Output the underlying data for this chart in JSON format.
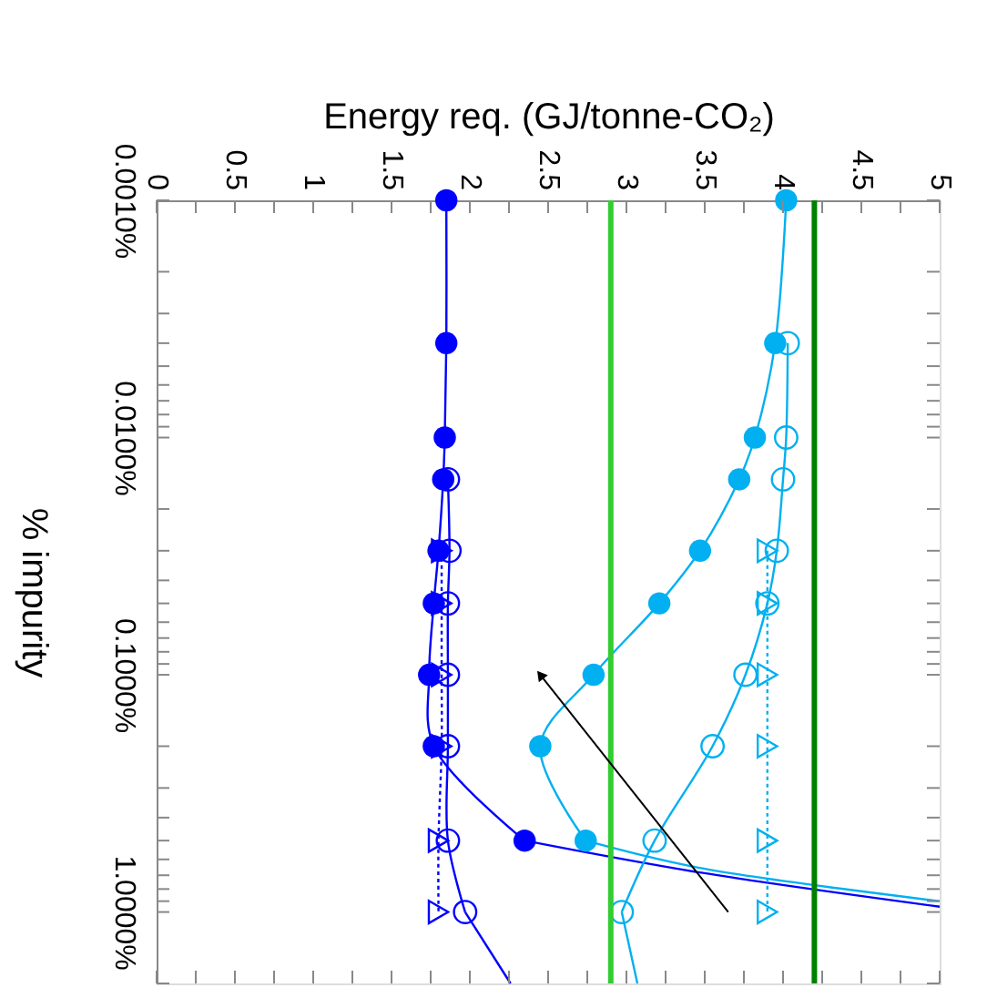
{
  "chart_data": {
    "type": "line",
    "orientation": "horizontal",
    "xlabel": "Energy req. (GJ/tonne-CO₂)",
    "ylabel": "% impurity",
    "log": "y",
    "ylim": [
      2,
      0.001
    ],
    "yticks": [
      {
        "value": 0.001,
        "label": "0.0010%"
      },
      {
        "value": 0.002,
        "label": null
      },
      {
        "value": 0.003,
        "label": null
      },
      {
        "value": 0.004,
        "label": null
      },
      {
        "value": 0.005,
        "label": null
      },
      {
        "value": 0.006,
        "label": null
      },
      {
        "value": 0.007,
        "label": null
      },
      {
        "value": 0.008,
        "label": null
      },
      {
        "value": 0.009,
        "label": null
      },
      {
        "value": 0.01,
        "label": "0.0100%"
      },
      {
        "value": 0.02,
        "label": null
      },
      {
        "value": 0.03,
        "label": null
      },
      {
        "value": 0.04,
        "label": null
      },
      {
        "value": 0.05,
        "label": null
      },
      {
        "value": 0.06,
        "label": null
      },
      {
        "value": 0.07,
        "label": null
      },
      {
        "value": 0.08,
        "label": null
      },
      {
        "value": 0.09,
        "label": null
      },
      {
        "value": 0.1,
        "label": "0.1000%"
      },
      {
        "value": 0.2,
        "label": null
      },
      {
        "value": 0.3,
        "label": null
      },
      {
        "value": 0.4,
        "label": null
      },
      {
        "value": 0.5,
        "label": null
      },
      {
        "value": 0.6,
        "label": null
      },
      {
        "value": 0.7,
        "label": null
      },
      {
        "value": 0.8,
        "label": null
      },
      {
        "value": 0.9,
        "label": null
      },
      {
        "value": 1,
        "label": "1.0000%"
      },
      {
        "value": 2,
        "label": null
      }
    ],
    "xlim": [
      0,
      5
    ],
    "xticks": [
      0,
      {
        "value": 0.25,
        "label": null
      },
      0.5,
      {
        "value": 0.75,
        "label": null
      },
      1,
      {
        "value": 1.25,
        "label": null
      },
      1.5,
      {
        "value": 1.75,
        "label": null
      },
      2,
      {
        "value": 2.25,
        "label": null
      },
      2.5,
      {
        "value": 2.75,
        "label": null
      },
      3,
      {
        "value": 3.25,
        "label": null
      },
      3.5,
      {
        "value": 3.75,
        "label": null
      },
      4,
      {
        "value": 4.25,
        "label": null
      },
      4.5,
      {
        "value": 4.75,
        "label": null
      },
      5
    ],
    "series": [
      {
        "color": "#0000ff",
        "marker": "circle",
        "line_style": "solid",
        "x": [
          0.001,
          0.004,
          0.01,
          0.015,
          0.03,
          0.05,
          0.1,
          0.2,
          0.5
        ],
        "values": [
          1.85,
          1.85,
          1.84,
          1.83,
          1.8,
          1.77,
          1.74,
          1.77,
          2.35
        ]
      },
      {
        "color": "#0000ff",
        "marker": "none",
        "line_style": "solid",
        "x": [
          0.5,
          0.68,
          0.95
        ],
        "values": [
          2.35,
          3.46,
          5
        ]
      },
      {
        "color": "#0000ff",
        "marker": "circle-open",
        "line_style": "solid",
        "x": [
          0.015,
          0.03,
          0.05,
          0.1,
          0.2,
          0.5,
          1
        ],
        "values": [
          1.86,
          1.87,
          1.86,
          1.86,
          1.86,
          1.86,
          1.97
        ]
      },
      {
        "color": "#0000ff",
        "marker": "none",
        "line_style": "solid",
        "x": [
          1,
          2
        ],
        "values": [
          1.97,
          2.26
        ]
      },
      {
        "color": "#0000ff",
        "marker": "triangle-open",
        "line_style": "dotted",
        "x": [
          0.03,
          0.05,
          0.1,
          0.2,
          0.5,
          1
        ],
        "values": [
          1.82,
          1.82,
          1.82,
          1.82,
          1.8,
          1.8
        ]
      },
      {
        "color": "#00b0f0",
        "marker": "circle",
        "line_style": "solid",
        "x": [
          0.001,
          0.004,
          0.01,
          0.015,
          0.03,
          0.05,
          0.1,
          0.2,
          0.5
        ],
        "values": [
          4.02,
          3.95,
          3.82,
          3.72,
          3.47,
          3.21,
          2.79,
          2.45,
          2.74
        ]
      },
      {
        "color": "#00b0f0",
        "marker": "none",
        "line_style": "solid",
        "x": [
          0.5,
          0.65,
          0.9
        ],
        "values": [
          2.74,
          3.46,
          5
        ]
      },
      {
        "color": "#00b0f0",
        "marker": "circle-open",
        "line_style": "solid",
        "x": [
          0.004,
          0.01,
          0.015,
          0.03,
          0.05,
          0.1,
          0.2,
          0.5,
          1
        ],
        "values": [
          4.03,
          4.02,
          4.0,
          3.96,
          3.9,
          3.76,
          3.55,
          3.18,
          2.97
        ]
      },
      {
        "color": "#00b0f0",
        "marker": "none",
        "line_style": "solid",
        "x": [
          1,
          2
        ],
        "values": [
          2.97,
          3.07
        ]
      },
      {
        "color": "#00b0f0",
        "marker": "triangle-open",
        "line_style": "dotted",
        "x": [
          0.03,
          0.05,
          0.1,
          0.2,
          0.5,
          1
        ],
        "values": [
          3.9,
          3.9,
          3.9,
          3.9,
          3.9,
          3.9
        ]
      }
    ],
    "ref_lines": [
      {
        "axis": "x",
        "value": 2.9,
        "color": "#33cc33"
      },
      {
        "axis": "x",
        "value": 4.2,
        "color": "#008000"
      }
    ]
  }
}
